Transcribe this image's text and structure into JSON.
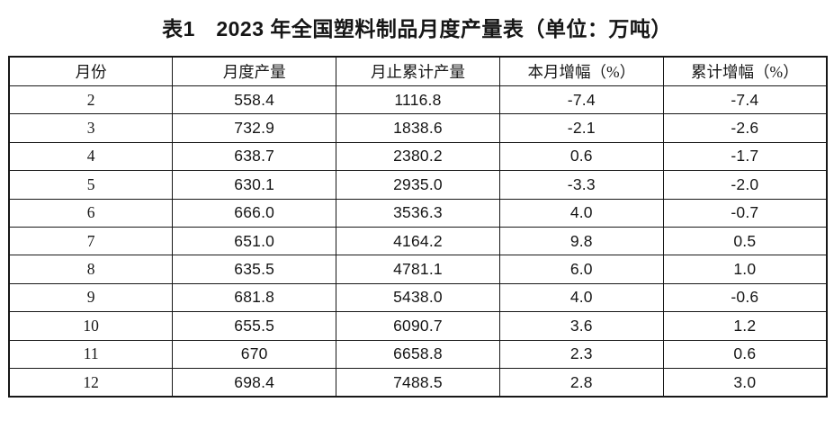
{
  "page": {
    "background_color": "#ffffff",
    "text_color": "#161616",
    "border_color": "#171717"
  },
  "title": "表1　2023 年全国塑料制品月度产量表（单位：万吨）",
  "chart_data": {
    "type": "table",
    "title": "表1 2023年全国塑料制品月度产量表（单位：万吨）",
    "unit": "万吨",
    "columns": [
      "月份",
      "月度产量",
      "月止累计产量",
      "本月增幅（%）",
      "累计增幅（%）"
    ],
    "column_keys": [
      "month",
      "monthly-output",
      "cumulative-output",
      "monthly-growth-pct",
      "cumulative-growth-pct"
    ],
    "rows": [
      [
        "2",
        "558.4",
        "1116.8",
        "-7.4",
        "-7.4"
      ],
      [
        "3",
        "732.9",
        "1838.6",
        "-2.1",
        "-2.6"
      ],
      [
        "4",
        "638.7",
        "2380.2",
        "0.6",
        "-1.7"
      ],
      [
        "5",
        "630.1",
        "2935.0",
        "-3.3",
        "-2.0"
      ],
      [
        "6",
        "666.0",
        "3536.3",
        "4.0",
        "-0.7"
      ],
      [
        "7",
        "651.0",
        "4164.2",
        "9.8",
        "0.5"
      ],
      [
        "8",
        "635.5",
        "4781.1",
        "6.0",
        "1.0"
      ],
      [
        "9",
        "681.8",
        "5438.0",
        "4.0",
        "-0.6"
      ],
      [
        "10",
        "655.5",
        "6090.7",
        "3.6",
        "1.2"
      ],
      [
        "11",
        "670",
        "6658.8",
        "2.3",
        "0.6"
      ],
      [
        "12",
        "698.4",
        "7488.5",
        "2.8",
        "3.0"
      ]
    ]
  }
}
